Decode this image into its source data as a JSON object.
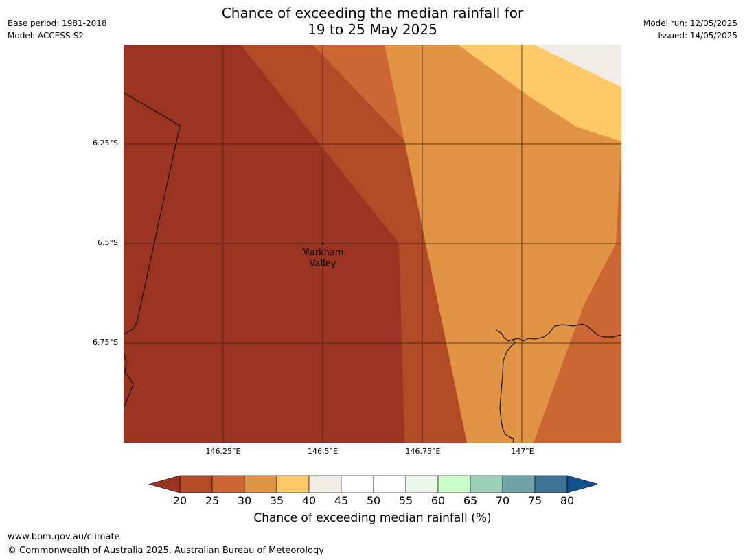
{
  "header": {
    "base_period": "Base period: 1981-2018",
    "model": "Model: ACCESS-S2",
    "title_line1": "Chance of exceeding the median rainfall for",
    "title_line2": "19 to 25 May 2025",
    "model_run": "Model run: 12/05/2025",
    "issued": "Issued: 14/05/2025"
  },
  "map": {
    "lat_labels": [
      "6.25°S",
      "6.5°S",
      "6.75°S"
    ],
    "lon_labels": [
      "146.25°E",
      "146.5°E",
      "146.75°E",
      "147°E"
    ],
    "place": {
      "name": "Markham\nValley",
      "lon": 146.5,
      "lat": -6.5
    },
    "bands": [
      {
        "range": "20-25",
        "color": "#9a3320"
      },
      {
        "range": "25-30",
        "color": "#b14a25"
      },
      {
        "range": "30-35",
        "color": "#cc6633"
      },
      {
        "range": "35-40",
        "color": "#e09444"
      },
      {
        "range": "40-45",
        "color": "#fdc967"
      },
      {
        "range": "45-50",
        "color": "#f0ebe5"
      }
    ]
  },
  "colorbar": {
    "title": "Chance of exceeding median rainfall (%)",
    "ticks": [
      "20",
      "25",
      "30",
      "35",
      "40",
      "45",
      "50",
      "55",
      "60",
      "65",
      "70",
      "75",
      "80"
    ],
    "colors": [
      "#9a3320",
      "#b14a25",
      "#cc6633",
      "#e09444",
      "#fdc967",
      "#f0ebe5",
      "#ffffff",
      "#ffffff",
      "#e8f6e8",
      "#c8fcc8",
      "#9dd0b9",
      "#6fa3a7",
      "#3f7396",
      "#10508d"
    ]
  },
  "footer": {
    "url": "www.bom.gov.au/climate",
    "copyright": "© Commonwealth of Australia 2025, Australian Bureau of Meteorology"
  }
}
